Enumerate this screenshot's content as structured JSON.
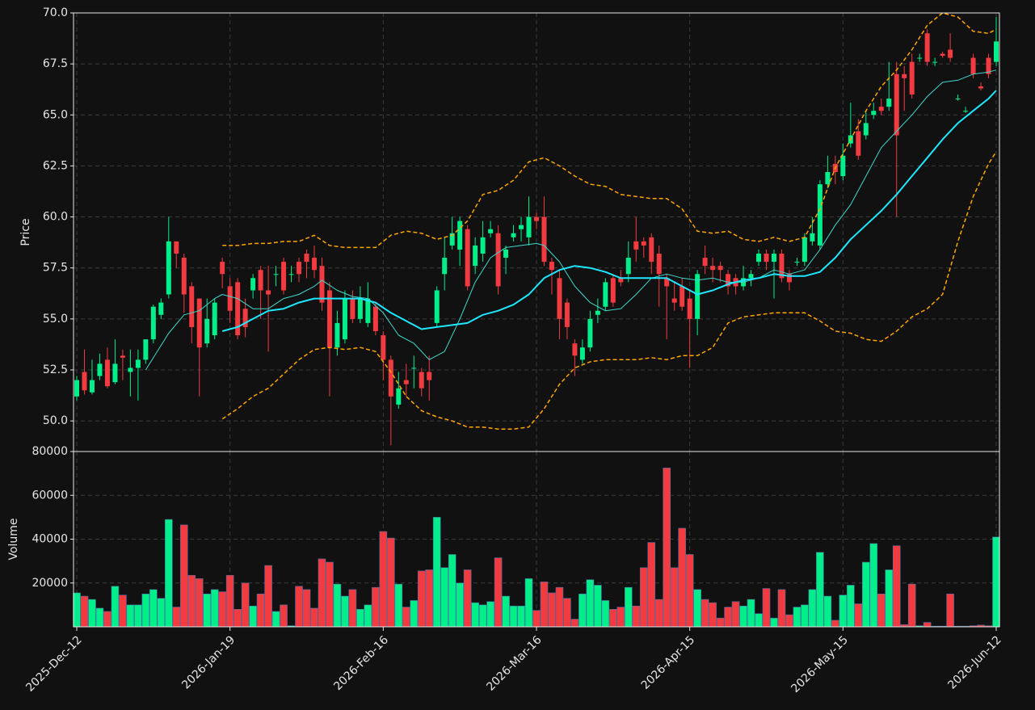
{
  "chart_data": [
    {
      "type": "candlestick",
      "ylabel": "Price",
      "grid": true,
      "up_color": "#00ef8b",
      "down_color": "#f23b40",
      "ylim": [
        48.5,
        70
      ],
      "yticks": [
        {
          "value": 50,
          "label": "50.0"
        },
        52.5,
        {
          "value": 55,
          "label": "55.0"
        },
        57.5,
        {
          "value": 60,
          "label": "60.0"
        },
        62.5,
        {
          "value": 65,
          "label": "65.0"
        },
        67.5,
        {
          "value": 70,
          "label": "70.0"
        }
      ],
      "open": [
        51.2,
        52.4,
        51.4,
        52.2,
        53.0,
        51.9,
        53.2,
        52.4,
        52.6,
        53.0,
        54.0,
        55.2,
        56.2,
        58.8,
        58.0,
        56.6,
        56.0,
        53.8,
        54.2,
        57.8,
        56.6,
        56.8,
        55.5,
        56.4,
        57.4,
        56.4,
        57.2,
        57.8,
        57.2,
        57.8,
        58.2,
        58.0,
        57.6,
        56.4,
        53.6,
        54.0,
        56.0,
        55.0,
        54.8,
        55.6,
        54.2,
        53.0,
        50.8,
        52.0,
        52.6,
        52.4,
        52.4,
        54.8,
        57.2,
        58.6,
        58.4,
        59.4,
        57.6,
        58.2,
        59.2,
        59.2,
        58.0,
        59.0,
        59.4,
        59.0,
        60.0,
        60.0,
        57.8,
        57.0,
        55.8,
        53.8,
        53.0,
        53.6,
        55.2,
        55.6,
        57.0,
        57.0,
        57.2,
        58.8,
        58.8,
        59.0,
        58.2,
        57.0,
        56.0,
        56.6,
        56.0,
        55.0,
        58.0,
        57.6,
        57.6,
        57.2,
        57.0,
        56.6,
        57.0,
        57.8,
        58.2,
        57.8,
        58.2,
        57.2,
        57.8,
        57.8,
        58.8,
        58.6,
        61.6,
        62.6,
        62.0,
        63.6,
        64.2,
        64.0,
        65.0,
        65.4,
        65.4,
        67.0,
        67.0,
        67.6,
        67.8,
        69.0,
        67.6,
        68.0,
        68.2,
        65.8,
        65.2,
        67.8,
        66.4,
        67.8,
        67.6
      ],
      "high": [
        52.2,
        53.5,
        53.0,
        53.3,
        53.6,
        54.0,
        53.5,
        53.5,
        53.5,
        54.0,
        55.7,
        56.0,
        60.0,
        58.8,
        58.2,
        56.8,
        56.0,
        56.0,
        56.0,
        58.0,
        57.0,
        57.0,
        56.0,
        57.2,
        57.6,
        57.6,
        57.6,
        58.0,
        57.6,
        58.0,
        58.4,
        58.6,
        58.0,
        56.8,
        55.4,
        56.4,
        56.4,
        56.6,
        56.8,
        55.8,
        54.4,
        53.2,
        52.4,
        52.8,
        53.2,
        52.6,
        53.2,
        56.6,
        59.0,
        60.0,
        60.0,
        59.6,
        59.0,
        59.8,
        59.8,
        59.6,
        58.6,
        59.6,
        60.0,
        61.0,
        60.2,
        61.0,
        58.0,
        57.4,
        56.0,
        54.0,
        54.0,
        55.4,
        56.0,
        57.0,
        57.2,
        57.4,
        58.8,
        60.0,
        59.0,
        59.2,
        58.6,
        57.2,
        56.8,
        57.0,
        56.4,
        57.4,
        58.6,
        58.0,
        57.8,
        57.4,
        57.2,
        57.6,
        57.4,
        58.4,
        58.4,
        58.4,
        58.4,
        57.4,
        58.0,
        59.2,
        60.0,
        61.8,
        63.0,
        63.0,
        63.6,
        65.6,
        64.8,
        65.2,
        65.6,
        65.8,
        67.6,
        67.6,
        67.4,
        68.0,
        68.0,
        69.2,
        67.8,
        68.1,
        69.0,
        66.0,
        65.4,
        68.0,
        66.6,
        68.0,
        69.8
      ],
      "low": [
        51.0,
        51.3,
        51.3,
        52.0,
        51.6,
        51.8,
        52.0,
        51.2,
        51.0,
        52.8,
        53.8,
        55.0,
        56.0,
        57.5,
        55.3,
        53.8,
        51.2,
        53.6,
        54.0,
        56.5,
        54.8,
        54.0,
        54.1,
        56.0,
        55.0,
        53.4,
        56.6,
        56.2,
        56.8,
        56.8,
        57.0,
        57.0,
        55.4,
        51.2,
        53.2,
        53.8,
        54.8,
        54.8,
        54.6,
        54.2,
        52.0,
        48.8,
        50.6,
        51.2,
        51.6,
        51.2,
        51.0,
        54.6,
        56.4,
        58.4,
        57.6,
        56.4,
        57.2,
        57.8,
        59.0,
        56.2,
        57.2,
        58.8,
        58.8,
        58.6,
        59.4,
        57.6,
        56.2,
        54.0,
        54.0,
        52.2,
        52.8,
        53.4,
        54.8,
        55.4,
        55.6,
        56.6,
        56.8,
        57.8,
        58.0,
        57.2,
        55.6,
        54.0,
        55.4,
        55.4,
        52.6,
        54.2,
        57.2,
        56.8,
        56.8,
        56.2,
        56.2,
        56.4,
        56.6,
        57.6,
        57.4,
        56.0,
        56.8,
        56.4,
        57.6,
        57.6,
        58.6,
        58.4,
        61.4,
        61.6,
        61.8,
        63.4,
        62.8,
        63.8,
        64.8,
        65.0,
        65.2,
        60.0,
        65.2,
        65.8,
        67.6,
        67.4,
        67.4,
        67.8,
        67.6,
        65.7,
        65.1,
        66.8,
        66.2,
        66.8,
        67.4
      ],
      "close": [
        52.0,
        51.5,
        52.0,
        52.8,
        51.7,
        52.8,
        53.1,
        52.6,
        53.0,
        54.0,
        55.6,
        55.8,
        58.8,
        58.2,
        56.2,
        54.6,
        53.6,
        55.0,
        55.8,
        57.2,
        55.4,
        54.2,
        54.6,
        57.0,
        56.4,
        56.2,
        57.2,
        56.4,
        57.2,
        57.2,
        57.8,
        57.4,
        55.8,
        53.6,
        54.8,
        56.0,
        55.0,
        56.0,
        56.0,
        54.4,
        53.0,
        51.2,
        51.6,
        51.8,
        52.6,
        51.6,
        52.0,
        56.4,
        58.0,
        59.2,
        59.8,
        56.6,
        58.6,
        59.0,
        59.4,
        56.6,
        58.4,
        59.2,
        59.6,
        60.0,
        59.8,
        57.8,
        57.4,
        55.0,
        54.6,
        53.2,
        53.6,
        55.0,
        55.4,
        56.8,
        55.8,
        56.8,
        58.0,
        58.4,
        58.6,
        57.8,
        57.2,
        56.6,
        55.8,
        55.6,
        55.0,
        57.2,
        57.6,
        57.4,
        57.4,
        56.6,
        56.6,
        57.0,
        57.2,
        58.2,
        57.8,
        58.2,
        57.0,
        56.8,
        57.8,
        59.0,
        59.2,
        61.6,
        62.2,
        62.2,
        63.0,
        64.0,
        63.0,
        64.6,
        65.2,
        65.2,
        65.8,
        64.0,
        66.8,
        66.0,
        67.8,
        67.6,
        67.6,
        67.9,
        67.8,
        65.8,
        65.2,
        67.0,
        66.3,
        67.0,
        68.6
      ],
      "overlays": [
        {
          "color": "#3fd9cf",
          "linewidth": 1,
          "linestyle": "solid",
          "x": [
            9,
            12,
            14,
            16,
            18,
            19,
            21,
            23,
            25,
            27,
            29,
            31,
            32,
            34,
            36,
            38,
            40,
            42,
            44,
            46,
            48,
            50,
            52,
            54,
            56,
            58,
            60,
            61,
            63,
            65,
            67,
            69,
            71,
            73,
            75,
            77,
            79,
            81,
            83,
            85,
            87,
            89,
            91,
            93,
            95,
            97,
            99,
            101,
            103,
            105,
            107,
            109,
            111,
            113,
            115,
            117,
            119,
            120
          ],
          "values": [
            52.5,
            54.3,
            55.2,
            55.4,
            56.0,
            56.2,
            56.0,
            55.5,
            55.5,
            56.0,
            56.2,
            56.6,
            56.9,
            56.4,
            56.1,
            56.0,
            55.3,
            54.2,
            53.8,
            53.0,
            53.4,
            55.0,
            56.8,
            58.0,
            58.5,
            58.6,
            58.7,
            58.6,
            57.8,
            56.6,
            55.8,
            55.4,
            55.5,
            56.2,
            57.0,
            57.2,
            57.0,
            56.9,
            57.0,
            56.8,
            56.8,
            57.0,
            57.4,
            57.2,
            57.4,
            58.4,
            59.6,
            60.6,
            62.0,
            63.4,
            64.2,
            65.0,
            65.9,
            66.6,
            66.7,
            67.0,
            67.1,
            67.2
          ]
        },
        {
          "color": "#1ee8ff",
          "linewidth": 2,
          "linestyle": "solid",
          "x": [
            19,
            21,
            23,
            25,
            27,
            29,
            31,
            33,
            35,
            37,
            39,
            41,
            43,
            45,
            47,
            49,
            51,
            53,
            55,
            57,
            59,
            61,
            63,
            65,
            67,
            69,
            71,
            73,
            75,
            77,
            79,
            81,
            83,
            85,
            87,
            89,
            91,
            93,
            95,
            97,
            99,
            101,
            103,
            105,
            107,
            109,
            111,
            113,
            115,
            117,
            119,
            120
          ],
          "values": [
            54.4,
            54.6,
            55.0,
            55.4,
            55.5,
            55.8,
            56.0,
            56.0,
            56.0,
            56.0,
            55.8,
            55.3,
            54.9,
            54.5,
            54.6,
            54.7,
            54.8,
            55.2,
            55.4,
            55.7,
            56.2,
            57.0,
            57.4,
            57.6,
            57.5,
            57.3,
            57.0,
            57.0,
            57.0,
            57.0,
            56.6,
            56.2,
            56.4,
            56.7,
            56.9,
            57.0,
            57.2,
            57.1,
            57.1,
            57.3,
            58.0,
            58.9,
            59.6,
            60.3,
            61.1,
            62.0,
            62.9,
            63.8,
            64.6,
            65.2,
            65.8,
            66.2
          ]
        },
        {
          "color": "#ffa500",
          "linewidth": 1.5,
          "linestyle": "dashed",
          "x": [
            19,
            21,
            23,
            25,
            27,
            29,
            31,
            33,
            35,
            37,
            39,
            41,
            43,
            45,
            47,
            49,
            51,
            53,
            55,
            57,
            59,
            61,
            63,
            65,
            67,
            69,
            71,
            73,
            75,
            77,
            79,
            81,
            83,
            85,
            87,
            89,
            91,
            93,
            95,
            97,
            99,
            101,
            103,
            105,
            107,
            109,
            111,
            113,
            115,
            117,
            119,
            120
          ],
          "values": [
            58.6,
            58.6,
            58.7,
            58.7,
            58.8,
            58.8,
            59.1,
            58.6,
            58.5,
            58.5,
            58.5,
            59.1,
            59.3,
            59.2,
            58.9,
            59.1,
            59.8,
            61.1,
            61.3,
            61.8,
            62.7,
            62.9,
            62.5,
            62.0,
            61.6,
            61.5,
            61.1,
            61.0,
            60.9,
            60.9,
            60.4,
            59.3,
            59.2,
            59.3,
            58.9,
            58.8,
            59.0,
            58.8,
            59.0,
            60.4,
            62.4,
            63.8,
            65.2,
            66.4,
            67.2,
            68.2,
            69.4,
            70.0,
            69.8,
            69.1,
            69.0,
            69.2
          ]
        },
        {
          "color": "#ffa500",
          "linewidth": 1.5,
          "linestyle": "dashed",
          "x": [
            19,
            21,
            23,
            25,
            27,
            29,
            31,
            33,
            35,
            37,
            39,
            41,
            43,
            45,
            47,
            49,
            51,
            53,
            55,
            57,
            59,
            61,
            63,
            65,
            67,
            69,
            71,
            73,
            75,
            77,
            79,
            81,
            83,
            85,
            87,
            89,
            91,
            93,
            95,
            97,
            99,
            101,
            103,
            105,
            107,
            109,
            111,
            113,
            115,
            117,
            119,
            120
          ],
          "values": [
            50.1,
            50.6,
            51.2,
            51.6,
            52.3,
            53.0,
            53.5,
            53.6,
            53.5,
            53.6,
            53.4,
            52.4,
            51.2,
            50.5,
            50.2,
            50.0,
            49.7,
            49.7,
            49.6,
            49.6,
            49.7,
            50.6,
            51.8,
            52.6,
            52.9,
            53.0,
            53.0,
            53.0,
            53.1,
            53.0,
            53.2,
            53.2,
            53.6,
            54.8,
            55.1,
            55.2,
            55.3,
            55.3,
            55.3,
            54.9,
            54.4,
            54.3,
            54.0,
            53.9,
            54.4,
            55.1,
            55.5,
            56.2,
            58.8,
            61.0,
            62.6,
            63.2
          ]
        }
      ]
    },
    {
      "type": "bar",
      "ylabel": "Volume",
      "grid": true,
      "edge_color": "#4a6fa5",
      "ylim": [
        0,
        80000
      ],
      "yticks": [
        20000,
        40000,
        60000,
        80000
      ],
      "categories": [
        "2025-Dec-12",
        null,
        null,
        null,
        null,
        null,
        null,
        null,
        null,
        null,
        null,
        null,
        null,
        null,
        null,
        null,
        null,
        null,
        null,
        null,
        "2026-Jan-19",
        null,
        null,
        null,
        null,
        null,
        null,
        null,
        null,
        null,
        null,
        null,
        null,
        null,
        null,
        null,
        null,
        null,
        null,
        null,
        "2026-Feb-16",
        null,
        null,
        null,
        null,
        null,
        null,
        null,
        null,
        null,
        null,
        null,
        null,
        null,
        null,
        null,
        null,
        null,
        null,
        null,
        "2026-Mar-16",
        null,
        null,
        null,
        null,
        null,
        null,
        null,
        null,
        null,
        null,
        null,
        null,
        null,
        null,
        null,
        null,
        null,
        null,
        null,
        "2026-Apr-15",
        null,
        null,
        null,
        null,
        null,
        null,
        null,
        null,
        null,
        null,
        null,
        null,
        null,
        null,
        null,
        null,
        null,
        null,
        null,
        "2026-May-15",
        null,
        null,
        null,
        null,
        null,
        null,
        null,
        null,
        null,
        null,
        null,
        null,
        null,
        null,
        null,
        null,
        null,
        null,
        null,
        "2026-Jun-12"
      ],
      "values": [
        15500,
        14000,
        12500,
        8500,
        7000,
        18500,
        14500,
        10000,
        10000,
        15000,
        17000,
        13000,
        49000,
        9000,
        46500,
        23500,
        22000,
        15000,
        17000,
        16000,
        23500,
        8000,
        20000,
        9500,
        15000,
        28000,
        7000,
        10000,
        500,
        18500,
        17000,
        8500,
        31000,
        29500,
        19500,
        14000,
        17000,
        8000,
        10000,
        18000,
        43500,
        40500,
        19500,
        9000,
        12000,
        25500,
        26000,
        50000,
        27000,
        33000,
        20000,
        26000,
        11000,
        10000,
        11500,
        31500,
        14000,
        9500,
        9500,
        22000,
        7500,
        20500,
        15500,
        18000,
        13000,
        3500,
        15000,
        21500,
        19000,
        12000,
        8000,
        9000,
        18000,
        9500,
        27000,
        38500,
        12500,
        72500,
        27000,
        45000,
        33000,
        17000,
        12500,
        11000,
        4000,
        9000,
        11500,
        9500,
        12500,
        6000,
        17500,
        4000,
        17000,
        5500,
        9000,
        10000,
        17000,
        34000,
        14000,
        3000,
        14500,
        19000,
        10500,
        29500,
        38000,
        15000,
        26000,
        37000,
        1000,
        19500,
        500,
        2000,
        300,
        300,
        15000,
        300,
        300,
        500,
        800,
        500,
        41000
      ]
    }
  ]
}
